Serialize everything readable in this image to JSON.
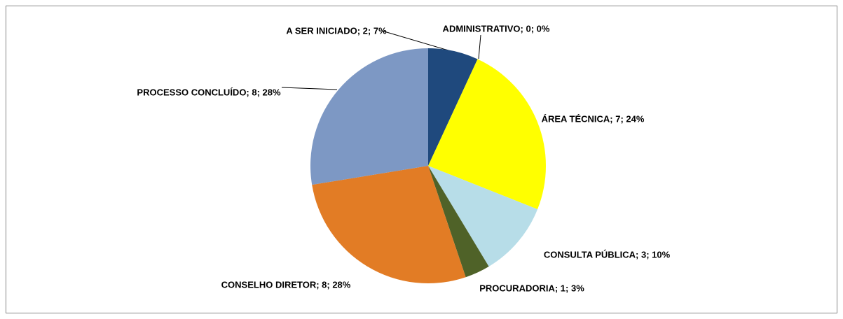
{
  "chart_data": {
    "type": "pie",
    "values": [
      2,
      0,
      7,
      3,
      1,
      8,
      8
    ],
    "value_labels": [
      "A SER INICIADO; 2; 7%",
      "ADMINISTRATIVO; 0; 0%",
      "ÁREA TÉCNICA; 7; 24%",
      "CONSULTA PÚBLICA; 3; 10%",
      "PROCURADORIA; 1; 3%",
      "CONSELHO DIRETOR; 8; 28%",
      "PROCESSO CONCLUÍDO; 8; 28%"
    ],
    "colors": [
      "#1f497d",
      "#c0504d",
      "#ffff00",
      "#b7dde8",
      "#4f6228",
      "#e27c25",
      "#7d98c4"
    ]
  }
}
